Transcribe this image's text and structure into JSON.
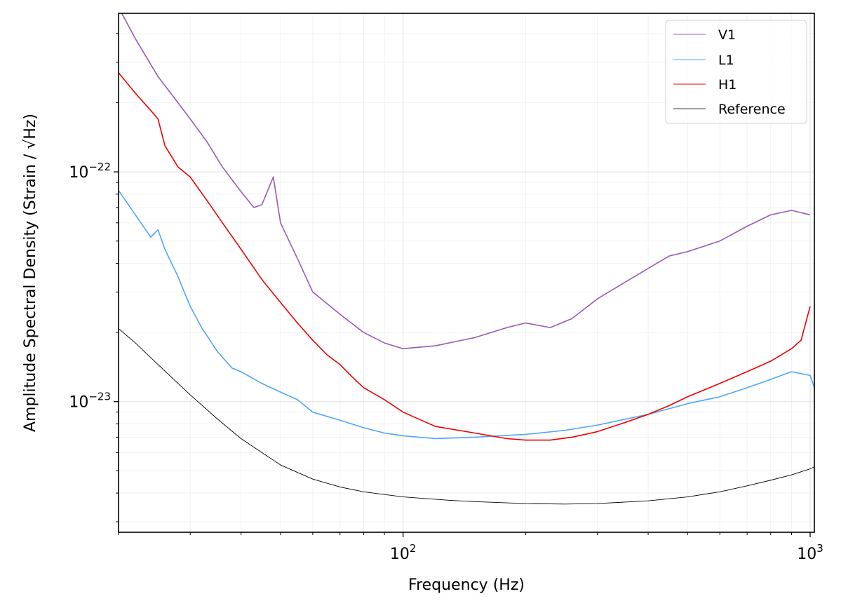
{
  "chart_data": {
    "type": "line",
    "xlabel": "Frequency (Hz)",
    "ylabel": "Amplitude Spectral Density (Strain / √Hz)",
    "xscale": "log",
    "yscale": "log",
    "xlim": [
      20,
      1024
    ],
    "ylim": [
      2.7e-24,
      4.9e-22
    ],
    "grid": true,
    "legend_position": "top-right",
    "x_ticks": [
      {
        "value": 100,
        "base": "10",
        "exp": "2"
      },
      {
        "value": 1000,
        "base": "10",
        "exp": "3"
      }
    ],
    "y_ticks": [
      {
        "value": 1e-23,
        "base": "10",
        "exp": "−23"
      },
      {
        "value": 1e-22,
        "base": "10",
        "exp": "−22"
      }
    ],
    "series": [
      {
        "name": "V1",
        "color": "#9b59b6",
        "x": [
          20,
          22,
          25,
          28,
          30,
          33,
          36,
          40,
          43,
          45,
          48,
          50,
          55,
          60,
          70,
          80,
          90,
          100,
          120,
          150,
          180,
          200,
          230,
          260,
          300,
          350,
          400,
          450,
          500,
          600,
          700,
          800,
          900,
          1000
        ],
        "y": [
          5.2e-22,
          3.8e-22,
          2.6e-22,
          2e-22,
          1.7e-22,
          1.35e-22,
          1.05e-22,
          8.2e-23,
          7e-23,
          7.2e-23,
          9.5e-23,
          6e-23,
          4.2e-23,
          3e-23,
          2.4e-23,
          2e-23,
          1.8e-23,
          1.7e-23,
          1.75e-23,
          1.9e-23,
          2.1e-23,
          2.2e-23,
          2.1e-23,
          2.3e-23,
          2.8e-23,
          3.3e-23,
          3.8e-23,
          4.3e-23,
          4.5e-23,
          5e-23,
          5.8e-23,
          6.5e-23,
          6.8e-23,
          6.5e-23
        ]
      },
      {
        "name": "L1",
        "color": "#4da6ff",
        "x": [
          20,
          22,
          24,
          25,
          26,
          28,
          29,
          30,
          32,
          35,
          38,
          40,
          45,
          50,
          55,
          60,
          70,
          80,
          90,
          100,
          120,
          150,
          200,
          250,
          300,
          400,
          500,
          600,
          700,
          800,
          900,
          1000,
          1024
        ],
        "y": [
          8.3e-23,
          6.5e-23,
          5.2e-23,
          5.6e-23,
          4.6e-23,
          3.5e-23,
          3e-23,
          2.6e-23,
          2.1e-23,
          1.65e-23,
          1.4e-23,
          1.35e-23,
          1.2e-23,
          1.1e-23,
          1.02e-23,
          9e-24,
          8.3e-24,
          7.7e-24,
          7.3e-24,
          7.1e-24,
          6.9e-24,
          7e-24,
          7.2e-24,
          7.5e-24,
          7.9e-24,
          8.8e-24,
          9.8e-24,
          1.05e-23,
          1.15e-23,
          1.25e-23,
          1.35e-23,
          1.3e-23,
          1.15e-23
        ]
      },
      {
        "name": "H1",
        "color": "#ee0000",
        "x": [
          20,
          22,
          24,
          25,
          26,
          28,
          30,
          33,
          36,
          40,
          45,
          50,
          55,
          60,
          65,
          70,
          75,
          80,
          90,
          100,
          120,
          150,
          180,
          200,
          230,
          260,
          300,
          350,
          400,
          450,
          500,
          600,
          700,
          800,
          900,
          950,
          1000
        ],
        "y": [
          2.7e-22,
          2.2e-22,
          1.85e-22,
          1.7e-22,
          1.3e-22,
          1.05e-22,
          9.5e-23,
          7.5e-23,
          6e-23,
          4.6e-23,
          3.4e-23,
          2.7e-23,
          2.2e-23,
          1.85e-23,
          1.6e-23,
          1.45e-23,
          1.28e-23,
          1.15e-23,
          1.02e-23,
          9e-24,
          7.8e-24,
          7.3e-24,
          6.9e-24,
          6.8e-24,
          6.8e-24,
          7e-24,
          7.4e-24,
          8.1e-24,
          8.8e-24,
          9.6e-24,
          1.05e-23,
          1.2e-23,
          1.35e-23,
          1.5e-23,
          1.7e-23,
          1.85e-23,
          2.6e-23
        ]
      },
      {
        "name": "Reference",
        "color": "#000000",
        "x": [
          20,
          22,
          25,
          30,
          35,
          40,
          50,
          60,
          70,
          80,
          100,
          130,
          150,
          200,
          250,
          300,
          400,
          500,
          600,
          700,
          800,
          900,
          1000,
          1024
        ],
        "y": [
          2.08e-23,
          1.8e-23,
          1.45e-23,
          1.07e-23,
          8.4e-24,
          6.9e-24,
          5.3e-24,
          4.6e-24,
          4.25e-24,
          4.05e-24,
          3.85e-24,
          3.72e-24,
          3.67e-24,
          3.6e-24,
          3.58e-24,
          3.6e-24,
          3.7e-24,
          3.85e-24,
          4.05e-24,
          4.3e-24,
          4.55e-24,
          4.8e-24,
          5.1e-24,
          5.2e-24
        ]
      }
    ]
  }
}
